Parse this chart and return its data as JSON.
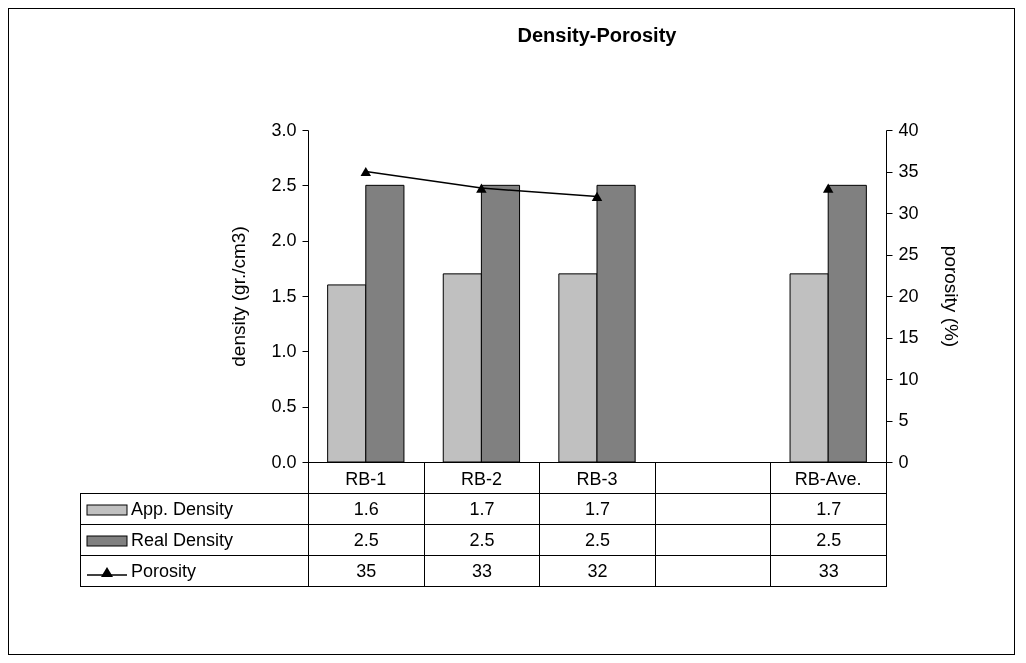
{
  "chart_data": {
    "type": "bar",
    "title": "Density-Porosity",
    "ylabel": "density (gr./cm3)",
    "y2label": "porosity (%)",
    "categories": [
      "RB-1",
      "RB-2",
      "RB-3",
      null,
      "RB-Ave."
    ],
    "series": [
      {
        "name": "App. Density",
        "color": "#c0c0c0",
        "values": [
          1.6,
          1.7,
          1.7,
          null,
          1.7
        ]
      },
      {
        "name": "Real Density",
        "color": "#808080",
        "values": [
          2.5,
          2.5,
          2.5,
          null,
          2.5
        ]
      },
      {
        "name": "Porosity",
        "type": "line",
        "axis": "y2",
        "color": "#000000",
        "marker": "triangle",
        "values": [
          35,
          33,
          32,
          null,
          33
        ]
      }
    ],
    "ylim": [
      0,
      3
    ],
    "yticks": [
      {
        "value": 0,
        "label": "0.0"
      },
      {
        "value": 0.5,
        "label": "0.5"
      },
      {
        "value": 1,
        "label": "1.0"
      },
      {
        "value": 1.5,
        "label": "1.5"
      },
      {
        "value": 2,
        "label": "2.0"
      },
      {
        "value": 2.5,
        "label": "2.5"
      },
      {
        "value": 3,
        "label": "3.0"
      }
    ],
    "y2lim": [
      0,
      40
    ],
    "y2ticks": [
      0,
      5,
      10,
      15,
      20,
      25,
      30,
      35,
      40
    ],
    "grid": false,
    "legend": "bottom",
    "data_labels": true
  }
}
